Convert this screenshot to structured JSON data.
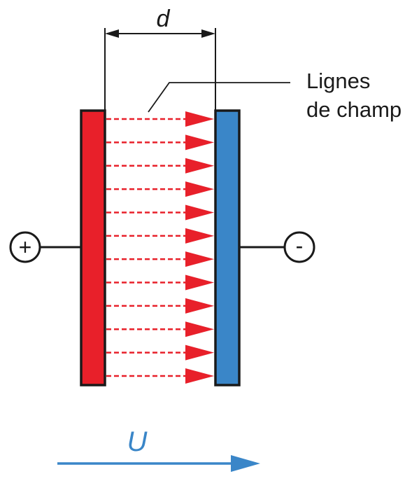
{
  "labels": {
    "distance": "d",
    "field_lines_line1": "Lignes",
    "field_lines_line2": "de champ",
    "voltage": "U",
    "positive_terminal": "+",
    "negative_terminal": "-"
  },
  "field_line_count": 12,
  "colors": {
    "positive_plate": "#e8202a",
    "negative_plate": "#3a86c8",
    "field_lines": "#e8202a",
    "voltage_arrow": "#3a86c8",
    "voltage_label": "#3a86c8",
    "outline": "#1a1a1a"
  }
}
